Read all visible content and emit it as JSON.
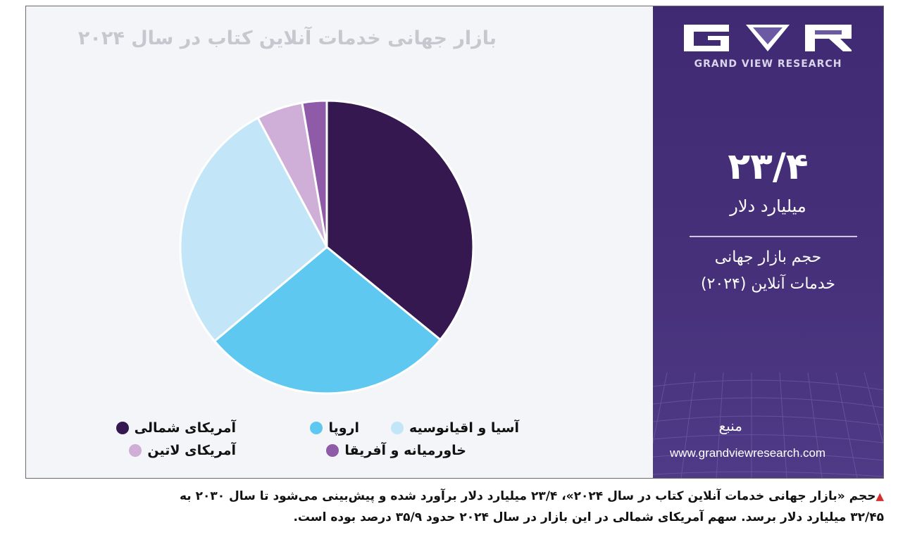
{
  "chart_data": {
    "type": "pie",
    "title": "بازار جهانی خدمات آنلاین کتاب در سال ۲۰۲۴",
    "legend_position": "bottom",
    "slices": [
      {
        "name": "آمریکای شمالی",
        "value": 35.9,
        "color": "#35184f"
      },
      {
        "name": "اروپا",
        "value": 28.0,
        "color": "#5ec8f0"
      },
      {
        "name": "آسیا و اقیانوسیه",
        "value": 28.3,
        "color": "#c2e6f7"
      },
      {
        "name": "آمریکای لاتین",
        "value": 5.1,
        "color": "#cfaed8"
      },
      {
        "name": "خاورمیانه و آفریقا",
        "value": 2.7,
        "color": "#8f5aa8"
      }
    ]
  },
  "side_panel": {
    "brand": "GRAND VIEW RESEARCH",
    "value": "۲۳/۴",
    "unit": "میلیارد دلار",
    "desc_line1": "حجم بازار جهانی",
    "desc_line2": "خدمات آنلاین (۲۰۲۴)",
    "source_label": "منبع",
    "source_url": "www.grandviewresearch.com"
  },
  "caption": {
    "marker": "▲",
    "line1": "حجم «بازار جهانی خدمات آنلاین کتاب در سال ۲۰۲۴»، ۲۳/۴ میلیارد دلار برآورد شده و پیش‌بینی می‌شود تا سال ۲۰۳۰ به",
    "line2": "۳۲/۴۵ میلیارد دلار برسد. سهم آمریکای شمالی در این بازار در سال ۲۰۲۴ حدود ۳۵/۹ درصد بوده است."
  },
  "colors": {
    "panel_bg": "#432d77",
    "chart_bg": "#f3f5f8",
    "caption_marker": "#d32f2f"
  }
}
